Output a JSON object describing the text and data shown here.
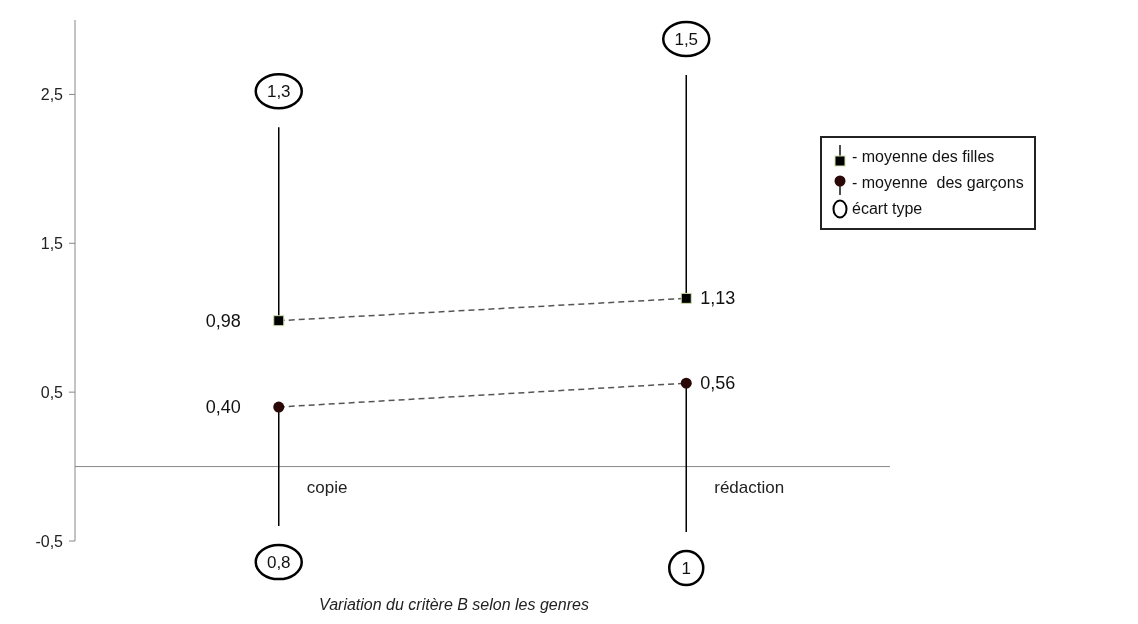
{
  "chart_data": {
    "type": "line",
    "title": "Variation du critère B selon les genres",
    "categories": [
      "copie",
      "rédaction"
    ],
    "series": [
      {
        "name": "- moyenne des filles",
        "color": "#000000",
        "marker": "square",
        "line_style": "dashed",
        "values": [
          0.98,
          1.13
        ],
        "value_labels": [
          "0,98",
          "1,13"
        ],
        "errors": [
          [
            0.98,
            2.28
          ],
          [
            1.13,
            2.63
          ]
        ]
      },
      {
        "name": "- moyenne  des garçons",
        "color": "#2a0808",
        "marker": "circle",
        "line_style": "dashed",
        "values": [
          0.4,
          0.56
        ],
        "value_labels": [
          "0,40",
          "0,56"
        ],
        "errors": [
          [
            -0.4,
            0.4
          ],
          [
            -0.44,
            0.56
          ]
        ]
      }
    ],
    "ylim": [
      -0.5,
      3
    ],
    "yticks": [
      {
        "value": -0.5,
        "label": "-0,5"
      },
      {
        "value": 0.5,
        "label": "0,5"
      },
      {
        "value": 1.5,
        "label": "1,5"
      },
      {
        "value": 2.5,
        "label": "2,5"
      }
    ],
    "grid": false,
    "legend": "right",
    "annotations": [
      "écart type",
      "1,3",
      "1,5",
      "0,8",
      "1"
    ]
  }
}
